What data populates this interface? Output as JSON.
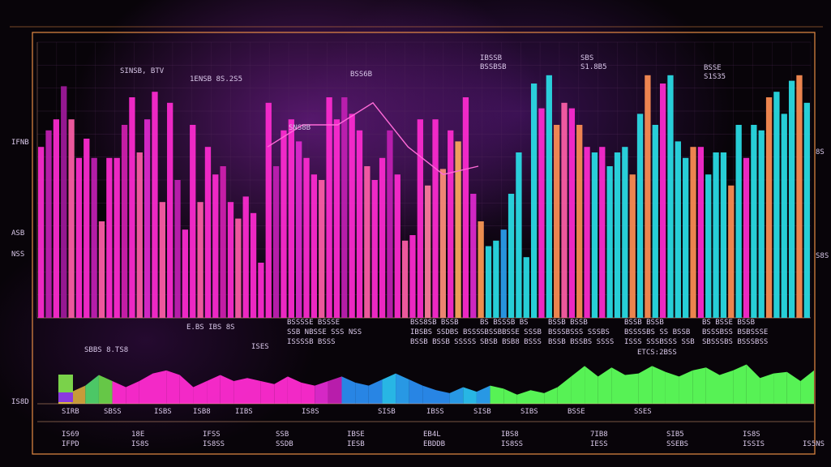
{
  "chart_data": {
    "type": "bar",
    "title": "",
    "xlabel": "",
    "ylabel": "",
    "ylim": [
      0,
      100
    ],
    "y_axis_labels": [
      "IFNB",
      "ASB",
      "NSS"
    ],
    "y_axis_right_labels": [
      "8S",
      "S8S"
    ],
    "panel2_y_label": "IS8D",
    "bottom_ticks": [
      {
        "top": "IS69",
        "bottom": "IFPD"
      },
      {
        "top": "18E",
        "bottom": "IS8S"
      },
      {
        "top": "IFSS",
        "bottom": "IS8SS"
      },
      {
        "top": "SSB",
        "bottom": "SSDB"
      },
      {
        "top": "IBSE",
        "bottom": "IESB"
      },
      {
        "top": "EB4L",
        "bottom": "EBDDB"
      },
      {
        "top": "IBS8",
        "bottom": "IS8SS"
      },
      {
        "top": "7IB8",
        "bottom": "IESS"
      },
      {
        "top": "SIB5",
        "bottom": "SSEBS"
      },
      {
        "top": "IS8S",
        "bottom": "ISSIS"
      },
      {
        "top": "",
        "bottom": "IS5NS"
      }
    ],
    "small_ticks": [
      "SIRB",
      "SBSS",
      "ISBS",
      "ISB8",
      "IIBS",
      "IS8S",
      "SISB",
      "IBSS",
      "SISB",
      "SIBS",
      "BSSE",
      "SSES"
    ],
    "annotations": [
      {
        "text": "SINSB, BTV",
        "color": "#c9e8ff"
      },
      {
        "text": "1ENSB 8S.2S5",
        "color": "#ff4fa8"
      },
      {
        "text": "BSS6B",
        "color": "#ff5ad0"
      },
      {
        "text": "SNS8B",
        "color": "#d8c7e8"
      },
      {
        "text": "IBSSB\nBSSBSB",
        "color": "#d8c7e8"
      },
      {
        "text": "SBS\nS1.8B5",
        "color": "#8cff7a"
      },
      {
        "text": "BSSE\nS1S35",
        "color": "#d8c7e8"
      },
      {
        "text": "E.BS IBS 8S",
        "color": "#ff4f9a"
      },
      {
        "text": "SBBS 8.TS8",
        "color": "#ff5ad0"
      },
      {
        "text": "ISES",
        "color": "#ff5ad0"
      },
      {
        "text": "ETCS:2BSS",
        "color": "#8cff7a"
      }
    ],
    "legend_blocks": [
      {
        "line1": "BSSSSE  BSSSE",
        "line2": "SSB NBSSE  SSS NSS",
        "line3": "ISSSSB  BSSS"
      },
      {
        "line1": "BSS8SB  BSSB",
        "line2": "IBSBS SSDBS  BSSS",
        "line3": "BSSB BSSB  SSSSS"
      },
      {
        "line1": "BS  BSSSB  BS",
        "line2": "SBSSBBSSE  SSSB",
        "line3": "SBSB  BSB8  BSSS"
      },
      {
        "line1": "BSSB  BSSB",
        "line2": "BSSSBSSS  SSSBS",
        "line3": "BSSB  BSSBS  SSSS"
      },
      {
        "line1": "BSSB  BSSB",
        "line2": "BSSSSBS  SS BSSB",
        "line3": "ISSS  SSSBSSS  SSB"
      },
      {
        "line1": "BS  BSSE  BSSB",
        "line2": "BSSSBSS  BSBSSSE",
        "line3": "SBSSSBS  BSSSBSS"
      }
    ],
    "series": [
      {
        "name": "bars",
        "values": [
          62,
          68,
          72,
          84,
          72,
          58,
          65,
          58,
          35,
          58,
          58,
          70,
          80,
          60,
          72,
          82,
          42,
          78,
          50,
          32,
          70,
          42,
          62,
          52,
          55,
          42,
          36,
          44,
          38,
          20,
          78,
          55,
          68,
          72,
          64,
          58,
          52,
          50,
          80,
          72,
          80,
          74,
          68,
          55,
          50,
          58,
          68,
          52,
          28,
          30,
          72,
          48,
          72,
          54,
          68,
          64,
          80,
          45,
          35,
          26,
          28,
          32,
          45,
          60,
          22,
          85,
          76,
          88,
          70,
          78,
          76,
          70,
          62,
          60,
          62,
          55,
          60,
          62,
          52,
          74,
          88,
          70,
          85,
          88,
          64,
          58,
          62,
          62,
          52,
          60,
          60,
          48,
          70,
          58,
          70,
          68,
          80,
          82,
          74,
          86,
          88,
          78
        ],
        "colors": [
          "#ff2bd1",
          "#c21fb4",
          "#ff2bd1",
          "#a11a9c",
          "#ff5fa8",
          "#ff2bd1",
          "#ff2bd1",
          "#c21fb4",
          "#ff5fa8",
          "#ff2bd1",
          "#ff2bd1",
          "#d11fb0",
          "#ff2bd1",
          "#ff5fa8",
          "#e02ad0",
          "#ff2bd1",
          "#ff5fa8",
          "#ff2bd1",
          "#c21fb4",
          "#ff2bd1",
          "#ff2bd1",
          "#ff5fa8",
          "#ff2bd1",
          "#ff2bd1",
          "#d11fb0",
          "#ff2bd1",
          "#ff5fa8",
          "#ff2bd1",
          "#ff2bd1",
          "#ff2bd1",
          "#ff2bd1",
          "#c21fb4",
          "#ff2bd1",
          "#ff2bd1",
          "#e02ad0",
          "#ff2bd1",
          "#ff2bd1",
          "#ff5fa8",
          "#ff2bd1",
          "#ff2bd1",
          "#c21fb4",
          "#ff2bd1",
          "#ff2bd1",
          "#ff5fa8",
          "#ff2bd1",
          "#ff2bd1",
          "#c21fb4",
          "#ff2bd1",
          "#ff5fa8",
          "#ff2bd1",
          "#ff2bd1",
          "#ff7fa0",
          "#ff2bd1",
          "#ff8f7a",
          "#ff2bd1",
          "#ffaa60",
          "#ff2bd1",
          "#e02ad0",
          "#ff9a55",
          "#2ae0e8",
          "#2ae0e8",
          "#2aa0f0",
          "#2ae0e8",
          "#2ae0e8",
          "#2ae0e8",
          "#2ae0e8",
          "#ff2bd1",
          "#2ae0e8",
          "#ff8f55",
          "#ff5fa8",
          "#ff2bd1",
          "#ff8f55",
          "#ff2bd1",
          "#2ae0e8",
          "#ff2bd1",
          "#2ae0e8",
          "#2ae0e8",
          "#2ae0e8",
          "#ff8f55",
          "#2ae0e8",
          "#ff8f55",
          "#2ae0e8",
          "#ff2bd1",
          "#2ae0e8",
          "#2ae0e8",
          "#2ae0e8",
          "#ff8f55",
          "#ff2bd1",
          "#2ae0e8",
          "#2ae0e8",
          "#2ae0e8",
          "#ff8f55",
          "#2ae0e8",
          "#ff2bd1",
          "#2ae0e8",
          "#2ae0e8",
          "#ff8f55",
          "#2ae0e8",
          "#2ae0e8",
          "#2ae0e8",
          "#ff8f55",
          "#2ae0e8"
        ]
      },
      {
        "name": "area",
        "values": [
          12,
          16,
          24,
          38,
          30,
          22,
          30,
          40,
          44,
          38,
          22,
          30,
          38,
          30,
          34,
          30,
          26,
          36,
          28,
          24,
          30,
          36,
          28,
          24,
          32,
          40,
          32,
          24,
          18,
          14,
          22,
          16,
          24,
          20,
          12,
          18,
          14,
          22,
          36,
          50,
          36,
          48,
          38,
          40,
          50,
          42,
          36,
          44,
          48,
          38,
          44,
          52,
          34,
          40,
          42,
          30,
          44
        ],
        "colors": [
          "#e2c23a",
          "#d1a33c",
          "#4fd26a",
          "#6ad24a",
          "#ff2bd1",
          "#ff2bd1",
          "#ff2bd1",
          "#ff2bd1",
          "#ff2bd1",
          "#ff2bd1",
          "#ff2bd1",
          "#ff2bd1",
          "#ff2bd1",
          "#ff2bd1",
          "#ff2bd1",
          "#ff2bd1",
          "#ff2bd1",
          "#ff2bd1",
          "#ff2bd1",
          "#e02ad0",
          "#c21fb4",
          "#2a8cf0",
          "#2a8cf0",
          "#2a8cf0",
          "#2ac0f0",
          "#2aa0f0",
          "#2a8cf0",
          "#2a8cf0",
          "#2a8cf0",
          "#2aa0f0",
          "#2ac0f0",
          "#2aa0f0",
          "#5cff5a",
          "#5cff5a",
          "#5cff5a",
          "#5cff5a",
          "#5cff5a",
          "#5cff5a",
          "#5cff5a",
          "#5cff5a",
          "#5cff5a",
          "#5cff5a",
          "#5cff5a",
          "#5cff5a",
          "#5cff5a",
          "#5cff5a",
          "#5cff5a",
          "#5cff5a",
          "#5cff5a",
          "#5cff5a",
          "#5cff5a",
          "#5cff5a",
          "#5cff5a",
          "#5cff5a",
          "#5cff5a",
          "#5cff5a",
          "#5cff5a"
        ]
      },
      {
        "name": "trend",
        "values": [
          62,
          70,
          70,
          78,
          62,
          52,
          55
        ]
      }
    ]
  },
  "theme": {
    "frame": "#ff9a4a",
    "grid": "#5a3060",
    "axis": "#ffbb88"
  }
}
